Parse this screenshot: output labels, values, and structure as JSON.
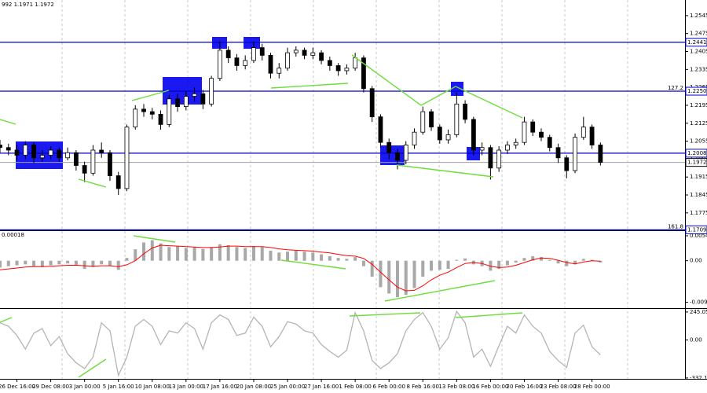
{
  "chart_data": [
    {
      "type": "candlestick",
      "label": "992 1.1971 1.1972",
      "xlim": [
        0,
        81
      ],
      "ylim": [
        1.1707,
        1.2606
      ],
      "yticks": [
        1.2545,
        1.2475,
        1.2405,
        1.2335,
        1.2265,
        1.2195,
        1.2125,
        1.2055,
        1.1985,
        1.1915,
        1.1845,
        1.1775
      ],
      "levels": [
        1.2441,
        {
          "value": 1.225,
          "label": "1.2250"
        },
        1.2008,
        1.1709
      ],
      "level_color": "#0000cd",
      "level_notes": [
        "127.2",
        "161.8"
      ],
      "current": 1.1972,
      "current_color": "#a0a0a0",
      "color": "#000000",
      "open": [
        1.204,
        1.203,
        1.202,
        1.2,
        1.204,
        1.199,
        1.2,
        1.202,
        1.199,
        1.201,
        1.196,
        1.193,
        1.202,
        1.201,
        1.192,
        1.187,
        1.211,
        1.218,
        1.217,
        1.216,
        1.212,
        1.222,
        1.219,
        1.223,
        1.224,
        1.22,
        1.23,
        1.241,
        1.238,
        1.235,
        1.237,
        1.242,
        1.239,
        1.232,
        1.234,
        1.24,
        1.241,
        1.239,
        1.24,
        1.237,
        1.235,
        1.233,
        1.234,
        1.238,
        1.226,
        1.215,
        1.205,
        1.201,
        1.198,
        1.204,
        1.209,
        1.217,
        1.211,
        1.206,
        1.208,
        1.22,
        1.214,
        1.202,
        1.203,
        1.195,
        1.202,
        1.204,
        1.205,
        1.213,
        1.209,
        1.207,
        1.203,
        1.199,
        1.194,
        1.207,
        1.211,
        1.204
      ],
      "high": [
        1.206,
        1.2045,
        1.204,
        1.2055,
        1.205,
        1.202,
        1.2035,
        1.203,
        1.203,
        1.202,
        1.1975,
        1.204,
        1.205,
        1.202,
        1.1935,
        1.212,
        1.2195,
        1.22,
        1.2185,
        1.2175,
        1.2235,
        1.224,
        1.225,
        1.2265,
        1.2255,
        1.231,
        1.2445,
        1.2425,
        1.2395,
        1.239,
        1.2445,
        1.2435,
        1.24,
        1.236,
        1.242,
        1.2425,
        1.242,
        1.242,
        1.241,
        1.2385,
        1.236,
        1.2355,
        1.24,
        1.239,
        1.227,
        1.216,
        1.2065,
        1.2025,
        1.2055,
        1.2105,
        1.219,
        1.218,
        1.212,
        1.21,
        1.2245,
        1.2215,
        1.215,
        1.205,
        1.204,
        1.2035,
        1.2055,
        1.2065,
        1.215,
        1.214,
        1.2105,
        1.208,
        1.2045,
        1.2,
        1.2085,
        1.215,
        1.212,
        1.205
      ],
      "low": [
        1.201,
        1.2,
        1.198,
        1.1985,
        1.197,
        1.1975,
        1.1985,
        1.1975,
        1.198,
        1.194,
        1.1895,
        1.192,
        1.199,
        1.19,
        1.1845,
        1.186,
        1.21,
        1.215,
        1.214,
        1.21,
        1.211,
        1.217,
        1.2175,
        1.221,
        1.218,
        1.219,
        1.229,
        1.236,
        1.233,
        1.2335,
        1.236,
        1.237,
        1.23,
        1.23,
        1.233,
        1.2385,
        1.2375,
        1.2375,
        1.2355,
        1.233,
        1.231,
        1.2315,
        1.233,
        1.2245,
        1.213,
        1.203,
        1.1985,
        1.1945,
        1.1965,
        1.2025,
        1.208,
        1.2095,
        1.2045,
        1.2045,
        1.207,
        1.2125,
        1.2,
        1.2,
        1.1905,
        1.1935,
        1.2005,
        1.2025,
        1.204,
        1.2075,
        1.2055,
        1.2015,
        1.197,
        1.191,
        1.193,
        1.206,
        1.2025,
        1.196
      ],
      "close": [
        1.203,
        1.202,
        1.2,
        1.204,
        1.199,
        1.2,
        1.202,
        1.199,
        1.201,
        1.196,
        1.193,
        1.202,
        1.201,
        1.192,
        1.187,
        1.211,
        1.218,
        1.217,
        1.216,
        1.212,
        1.222,
        1.219,
        1.223,
        1.224,
        1.22,
        1.23,
        1.241,
        1.238,
        1.235,
        1.237,
        1.242,
        1.239,
        1.232,
        1.234,
        1.24,
        1.241,
        1.239,
        1.24,
        1.237,
        1.235,
        1.233,
        1.234,
        1.238,
        1.226,
        1.215,
        1.205,
        1.201,
        1.198,
        1.204,
        1.209,
        1.217,
        1.211,
        1.206,
        1.208,
        1.22,
        1.214,
        1.202,
        1.203,
        1.195,
        1.202,
        1.204,
        1.205,
        1.213,
        1.209,
        1.207,
        1.203,
        1.199,
        1.194,
        1.207,
        1.211,
        1.204,
        1.1972
      ]
    },
    {
      "type": "bar",
      "label": "0.00018",
      "xlim": [
        0,
        81
      ],
      "ylim": [
        -0.0104,
        0.0065
      ],
      "yticks": [
        0.00547,
        {
          "value": 0,
          "label": "0.00"
        },
        -0.0091
      ],
      "series": [
        {
          "type": "bar",
          "color": "#a8a8a8",
          "values": [
            -0.0015,
            -0.0012,
            -0.001,
            -0.0008,
            -0.0012,
            -0.0014,
            -0.001,
            -0.0008,
            -0.0006,
            -0.001,
            -0.0018,
            -0.0014,
            -0.0008,
            -0.0012,
            -0.002,
            0.0006,
            0.0025,
            0.004,
            0.0045,
            0.0038,
            0.003,
            0.0032,
            0.0028,
            0.003,
            0.0026,
            0.003,
            0.0036,
            0.0034,
            0.003,
            0.0028,
            0.0032,
            0.003,
            0.0022,
            0.0018,
            0.002,
            0.0022,
            0.002,
            0.0018,
            0.0014,
            0.001,
            0.0006,
            0.0004,
            0.0008,
            -0.0012,
            -0.0035,
            -0.0058,
            -0.0072,
            -0.008,
            -0.0075,
            -0.006,
            -0.0035,
            -0.0022,
            -0.002,
            -0.0018,
            0.0002,
            0.0005,
            -0.0008,
            -0.0012,
            -0.0022,
            -0.0018,
            -0.001,
            -0.0004,
            0.0006,
            0.001,
            0.0008,
            0.0002,
            -0.0006,
            -0.0012,
            -0.0008,
            0.0004,
            0.0002,
            -0.0004
          ]
        },
        {
          "type": "line",
          "color": "#ff0000",
          "values": [
            -0.002,
            -0.0018,
            -0.0016,
            -0.0014,
            -0.0013,
            -0.0013,
            -0.0012,
            -0.0011,
            -0.001,
            -0.001,
            -0.0011,
            -0.0012,
            -0.0011,
            -0.0011,
            -0.0013,
            -0.0009,
            0.0,
            0.0015,
            0.0028,
            0.0034,
            0.0033,
            0.0032,
            0.0031,
            0.003,
            0.0029,
            0.0029,
            0.003,
            0.0032,
            0.0032,
            0.0031,
            0.0031,
            0.0031,
            0.0029,
            0.0026,
            0.0024,
            0.0023,
            0.0022,
            0.0021,
            0.0019,
            0.0017,
            0.0014,
            0.0011,
            0.001,
            0.0005,
            -0.0008,
            -0.0025,
            -0.0042,
            -0.0058,
            -0.0066,
            -0.0065,
            -0.0055,
            -0.0042,
            -0.0032,
            -0.0025,
            -0.0015,
            -0.0006,
            -0.0004,
            -0.0006,
            -0.0012,
            -0.0015,
            -0.0014,
            -0.001,
            -0.0004,
            0.0002,
            0.0006,
            0.0005,
            0.0001,
            -0.0004,
            -0.0007,
            -0.0003,
            0.0,
            -0.0001
          ]
        }
      ]
    },
    {
      "type": "line",
      "xlim": [
        0,
        81
      ],
      "ylim": [
        -340,
        272
      ],
      "yticks": [
        245.0577,
        {
          "value": 0,
          "label": "0.00"
        },
        -332.186
      ],
      "color": "#b4b4b4",
      "values": [
        150,
        120,
        40,
        -80,
        60,
        100,
        -50,
        30,
        -120,
        -200,
        -250,
        -150,
        150,
        80,
        -310,
        -150,
        120,
        180,
        120,
        -40,
        80,
        60,
        150,
        100,
        -80,
        150,
        220,
        180,
        40,
        60,
        200,
        120,
        -60,
        30,
        160,
        140,
        80,
        60,
        -40,
        -100,
        -150,
        -90,
        240,
        80,
        -180,
        -250,
        -200,
        -120,
        80,
        180,
        240,
        120,
        -80,
        20,
        250,
        150,
        -150,
        -80,
        -230,
        -50,
        120,
        60,
        220,
        120,
        60,
        -100,
        -180,
        -240,
        60,
        130,
        -60,
        -130
      ],
      "xticks": [
        {
          "value": 2,
          "label": "26 Dec 16:00"
        },
        {
          "value": 6,
          "label": "29 Dec 08:00"
        },
        {
          "value": 10,
          "label": "3 Jan 00:00"
        },
        {
          "value": 14,
          "label": "5 Jan 16:00"
        },
        {
          "value": 18,
          "label": "10 Jan 08:00"
        },
        {
          "value": 22,
          "label": "13 Jan 00:00"
        },
        {
          "value": 26,
          "label": "17 Jan 16:00"
        },
        {
          "value": 30,
          "label": "20 Jan 08:00"
        },
        {
          "value": 34,
          "label": "25 Jan 00:00"
        },
        {
          "value": 38,
          "label": "27 Jan 16:00"
        },
        {
          "value": 42,
          "label": "1 Feb 08:00"
        },
        {
          "value": 46,
          "label": "6 Feb 00:00"
        },
        {
          "value": 50,
          "label": "8 Feb 16:00"
        },
        {
          "value": 54,
          "label": "13 Feb 08:00"
        },
        {
          "value": 58,
          "label": "16 Feb 00:00"
        },
        {
          "value": 62,
          "label": "20 Feb 16:00"
        },
        {
          "value": 66,
          "label": "23 Feb 08:00"
        },
        {
          "value": 70,
          "label": "28 Feb 00:00"
        }
      ]
    }
  ]
}
